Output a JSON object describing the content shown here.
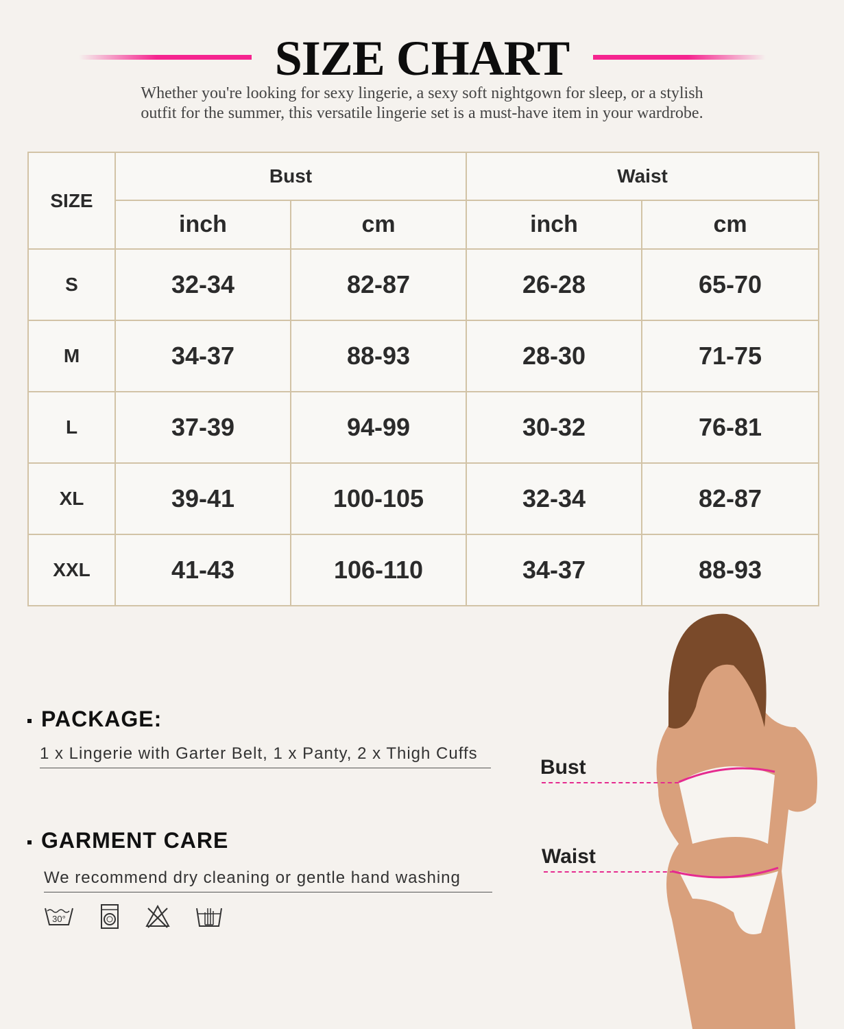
{
  "header": {
    "title": "SIZE CHART",
    "subtitle_line1": "Whether you're looking for sexy lingerie, a sexy soft nightgown for sleep, or a stylish",
    "subtitle_line2": "outfit for the summer, this versatile lingerie set is a must-have item in your wardrobe.",
    "accent_color": "#f5258f"
  },
  "table": {
    "size_header": "SIZE",
    "groups": [
      "Bust",
      "Waist"
    ],
    "units": [
      "inch",
      "cm",
      "inch",
      "cm"
    ],
    "rows": [
      {
        "size": "S",
        "values": [
          "32-34",
          "82-87",
          "26-28",
          "65-70"
        ]
      },
      {
        "size": "M",
        "values": [
          "34-37",
          "88-93",
          "28-30",
          "71-75"
        ]
      },
      {
        "size": "L",
        "values": [
          "37-39",
          "94-99",
          "30-32",
          "76-81"
        ]
      },
      {
        "size": "XL",
        "values": [
          "39-41",
          "100-105",
          "32-34",
          "82-87"
        ]
      },
      {
        "size": "XXL",
        "values": [
          "41-43",
          "106-110",
          "34-37",
          "88-93"
        ]
      }
    ]
  },
  "package": {
    "heading": "PACKAGE:",
    "text": "1 x Lingerie with Garter Belt, 1 x Panty, 2 x Thigh Cuffs"
  },
  "care": {
    "heading": "GARMENT CARE",
    "text": "We recommend dry cleaning or gentle hand washing",
    "icons": [
      "wash-30-icon",
      "washing-machine-icon",
      "no-bleach-icon",
      "hand-wash-icon"
    ],
    "wash_temp": "30°"
  },
  "model": {
    "bust_label": "Bust",
    "waist_label": "Waist"
  }
}
